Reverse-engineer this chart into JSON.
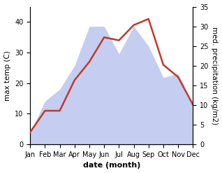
{
  "months": [
    "Jan",
    "Feb",
    "Mar",
    "Apr",
    "May",
    "Jun",
    "Jul",
    "Aug",
    "Sep",
    "Oct",
    "Nov",
    "Dec"
  ],
  "month_indices": [
    1,
    2,
    3,
    4,
    5,
    6,
    7,
    8,
    9,
    10,
    11,
    12
  ],
  "temperature": [
    4,
    11,
    11,
    21,
    27,
    35,
    34,
    39,
    41,
    26,
    22,
    13
  ],
  "precipitation": [
    3,
    11,
    14,
    20,
    30,
    30,
    23,
    30,
    25,
    17,
    18,
    10
  ],
  "temp_color": "#c0392b",
  "precip_fill_color": "#c5cef0",
  "temp_ylim": [
    0,
    45
  ],
  "precip_ylim": [
    0,
    35
  ],
  "temp_yticks": [
    0,
    10,
    20,
    30,
    40
  ],
  "precip_yticks": [
    0,
    5,
    10,
    15,
    20,
    25,
    30,
    35
  ],
  "ylabel_left": "max temp (C)",
  "ylabel_right": "med. precipitation (kg/m2)",
  "xlabel": "date (month)",
  "bg_color": "#ffffff",
  "line_width": 1.8,
  "tick_fontsize": 7,
  "label_fontsize": 7.5,
  "xlabel_fontsize": 8
}
